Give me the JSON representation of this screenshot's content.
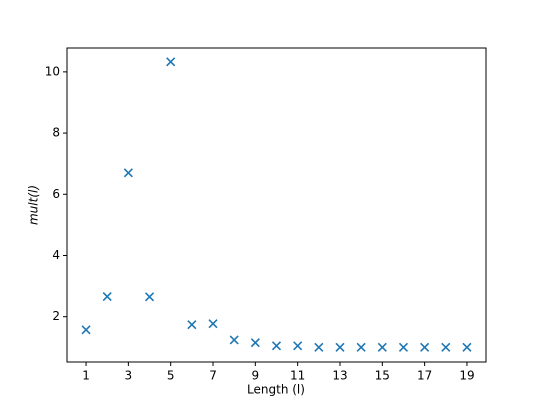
{
  "chart_data": {
    "type": "scatter",
    "xlabel": "Length (l)",
    "ylabel": "mult(l)",
    "x": [
      1,
      2,
      3,
      4,
      5,
      6,
      7,
      8,
      9,
      10,
      11,
      12,
      13,
      14,
      15,
      16,
      17,
      18,
      19
    ],
    "series": [
      {
        "color": "#1f77b4",
        "values": [
          1.57,
          2.66,
          6.7,
          2.65,
          10.33,
          1.74,
          1.77,
          1.24,
          1.15,
          1.05,
          1.05,
          1.0,
          1.0,
          1.0,
          1.0,
          1.0,
          1.0,
          1.0,
          1.0
        ]
      }
    ],
    "xlim": [
      0.1,
      19.9
    ],
    "xticks": [
      1,
      3,
      5,
      7,
      9,
      11,
      13,
      15,
      17,
      19
    ],
    "ylim": [
      0.52,
      10.78
    ],
    "yticks": [
      2,
      4,
      6,
      8,
      10
    ]
  }
}
